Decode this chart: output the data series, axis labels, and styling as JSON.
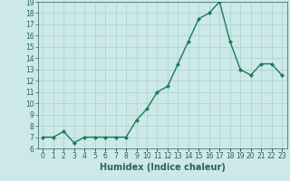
{
  "title": "",
  "xlabel": "Humidex (Indice chaleur)",
  "ylabel": "",
  "x": [
    0,
    1,
    2,
    3,
    4,
    5,
    6,
    7,
    8,
    9,
    10,
    11,
    12,
    13,
    14,
    15,
    16,
    17,
    18,
    19,
    20,
    21,
    22,
    23
  ],
  "y": [
    7.0,
    7.0,
    7.5,
    6.5,
    7.0,
    7.0,
    7.0,
    7.0,
    7.0,
    8.5,
    9.5,
    11.0,
    11.5,
    13.5,
    15.5,
    17.5,
    18.0,
    19.0,
    15.5,
    13.0,
    12.5,
    13.5,
    13.5,
    12.5
  ],
  "line_color": "#1a7a5e",
  "marker": "D",
  "marker_size": 2.0,
  "line_width": 1.0,
  "bg_color": "#cce9e7",
  "grid_color": "#a8d0ce",
  "tick_color": "#2a6060",
  "ylim": [
    6,
    19
  ],
  "yticks": [
    6,
    7,
    8,
    9,
    10,
    11,
    12,
    13,
    14,
    15,
    16,
    17,
    18,
    19
  ],
  "xticks": [
    0,
    1,
    2,
    3,
    4,
    5,
    6,
    7,
    8,
    9,
    10,
    11,
    12,
    13,
    14,
    15,
    16,
    17,
    18,
    19,
    20,
    21,
    22,
    23
  ],
  "xtick_labels": [
    "0",
    "1",
    "2",
    "3",
    "4",
    "5",
    "6",
    "7",
    "8",
    "9",
    "10",
    "11",
    "12",
    "13",
    "14",
    "15",
    "16",
    "17",
    "18",
    "19",
    "20",
    "21",
    "22",
    "23"
  ],
  "axis_label_fontsize": 7.0,
  "tick_fontsize": 5.5
}
